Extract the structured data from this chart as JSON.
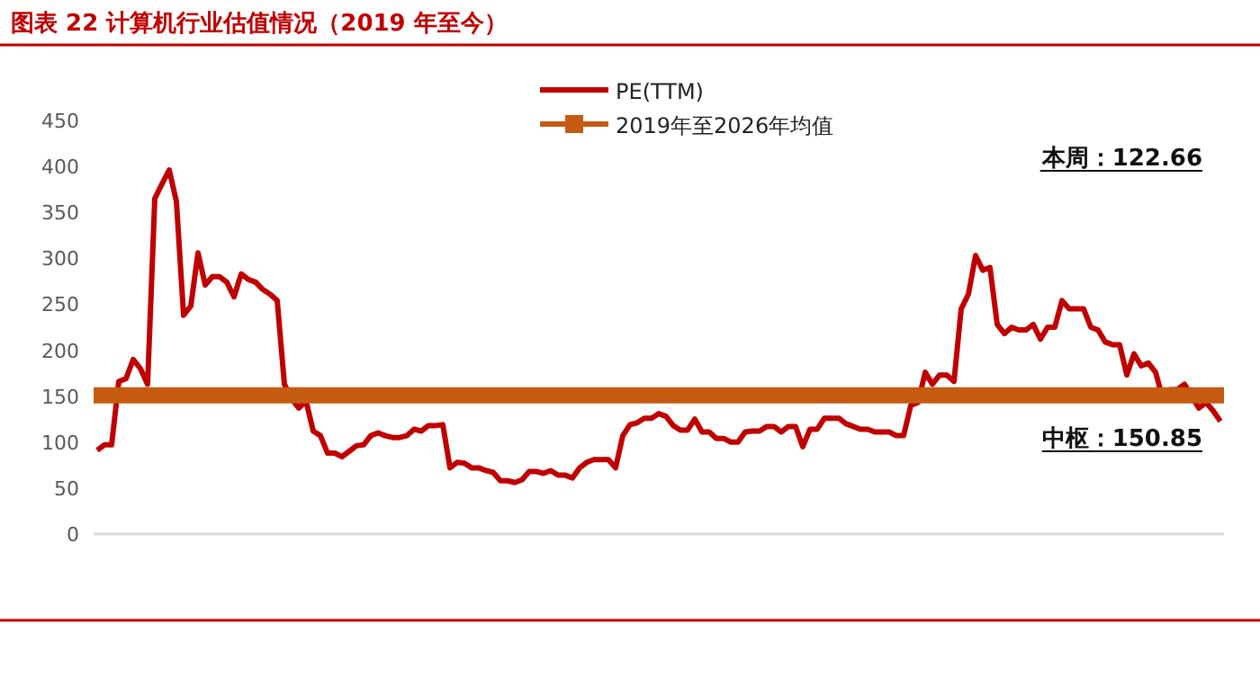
{
  "chart_data": {
    "type": "line",
    "title": "图表 22 计算机行业估值情况（2019 年至今）",
    "categories": [
      null,
      null,
      null,
      null,
      null,
      null,
      null,
      null,
      null,
      null,
      null,
      null,
      null,
      null,
      null,
      null,
      null,
      null,
      null,
      null,
      null,
      null,
      null,
      null,
      null,
      null,
      null,
      null,
      null,
      null,
      null,
      null,
      null,
      null,
      null,
      null,
      null,
      null,
      null,
      null,
      null,
      null,
      null,
      null,
      null,
      null,
      null,
      null,
      null,
      null,
      null,
      null,
      null,
      null,
      null,
      null,
      null,
      null,
      null,
      null,
      null,
      null,
      null,
      null,
      null,
      null,
      null,
      null,
      null,
      null,
      null,
      null,
      null,
      null,
      null,
      null,
      null,
      null,
      null,
      null,
      null,
      null,
      null,
      null,
      null,
      null,
      null,
      null,
      null,
      null,
      null,
      null,
      null,
      null,
      null,
      null,
      null,
      null,
      null,
      null,
      null,
      null,
      null,
      null,
      null,
      null,
      null,
      null,
      null,
      null,
      null,
      null,
      null,
      null,
      null,
      null,
      null,
      null,
      null,
      null,
      null,
      null,
      null,
      null,
      null,
      null,
      null,
      null,
      null,
      null,
      null,
      null,
      null,
      null,
      null,
      null,
      null,
      null,
      null,
      null,
      null,
      null,
      null,
      null,
      null,
      null,
      null,
      null,
      null,
      null,
      null,
      null,
      null,
      null,
      null,
      null,
      null
    ],
    "ylim": [
      0,
      450
    ],
    "yticks": [
      0,
      50,
      100,
      150,
      200,
      250,
      300,
      350,
      400,
      450
    ],
    "grid": false,
    "legend": "top",
    "line_style": "solid",
    "series": [
      {
        "name": "PE(TTM)",
        "color": "#c00000",
        "values": [
          91,
          97,
          97,
          166,
          169,
          190,
          180,
          163,
          365,
          381,
          396,
          362,
          238,
          248,
          306,
          271,
          280,
          280,
          274,
          258,
          283,
          277,
          274,
          266,
          261,
          254,
          163,
          147,
          137,
          145,
          112,
          107,
          88,
          88,
          84,
          90,
          96,
          97,
          107,
          110,
          107,
          105,
          105,
          107,
          114,
          112,
          118,
          118,
          119,
          72,
          78,
          77,
          72,
          72,
          69,
          67,
          58,
          58,
          56,
          59,
          68,
          68,
          66,
          69,
          64,
          64,
          61,
          72,
          78,
          81,
          81,
          81,
          72,
          107,
          119,
          121,
          126,
          126,
          131,
          128,
          118,
          113,
          113,
          125,
          111,
          111,
          104,
          104,
          100,
          100,
          111,
          112,
          112,
          117,
          117,
          111,
          117,
          117,
          95,
          114,
          114,
          126,
          126,
          126,
          120,
          117,
          114,
          114,
          111,
          111,
          111,
          107,
          107,
          140,
          143,
          176,
          163,
          173,
          173,
          166,
          245,
          261,
          303,
          287,
          290,
          228,
          218,
          225,
          222,
          222,
          228,
          212,
          225,
          225,
          254,
          245,
          245,
          245,
          225,
          222,
          209,
          206,
          206,
          173,
          196,
          183,
          186,
          176,
          147,
          157,
          157,
          163,
          150,
          137,
          143,
          134,
          122.66
        ]
      }
    ],
    "ref_lines": [
      {
        "axis": "y",
        "value": 150.85,
        "label": "2019年至2026年均值",
        "color": "#c55a11"
      }
    ],
    "annotations": [
      "本周：122.66",
      "中枢：150.85"
    ]
  }
}
